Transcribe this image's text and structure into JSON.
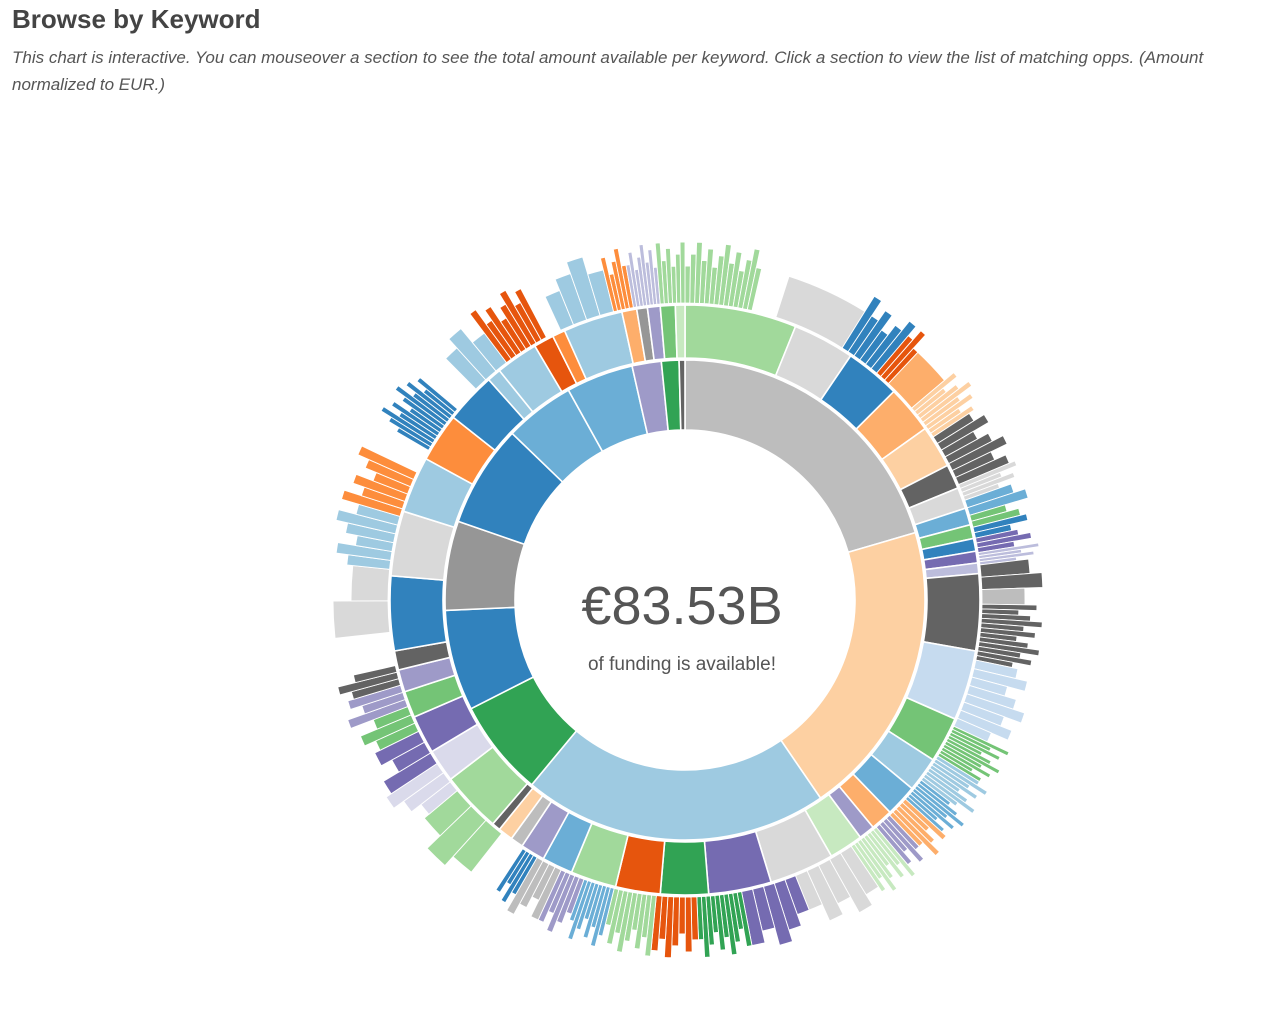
{
  "header": {
    "title": "Browse by Keyword",
    "description": "This chart is interactive. You can mouseover a section to see the total amount available per keyword. Click a section to view the list of matching opps. (Amount normalized to EUR.)"
  },
  "center": {
    "amount": "€83.53B",
    "caption": "of funding is available!"
  },
  "chart_data": {
    "type": "sunburst",
    "total_label": "€83.53B",
    "unit": "EUR",
    "start_angle_deg": 0,
    "palette": [
      "#3182bd",
      "#6baed6",
      "#9ecae1",
      "#c6dbef",
      "#e6550d",
      "#fd8d3c",
      "#fdae6b",
      "#fdd0a2",
      "#31a354",
      "#74c476",
      "#a1d99b",
      "#c7e9c0",
      "#756bb1",
      "#9e9ac8",
      "#bcbddc",
      "#dadaeb",
      "#636363",
      "#969696",
      "#bdbdbd",
      "#d9d9d9"
    ],
    "ring1": [
      {
        "value": 20.8,
        "color": "#bdbdbd"
      },
      {
        "value": 20.3,
        "color": "#fdd0a2"
      },
      {
        "value": 20.9,
        "color": "#9ecae1"
      },
      {
        "value": 6.6,
        "color": "#31a354"
      },
      {
        "value": 6.9,
        "color": "#3182bd"
      },
      {
        "value": 6.1,
        "color": "#969696"
      },
      {
        "value": 7.0,
        "color": "#3182bd"
      },
      {
        "value": 4.8,
        "color": "#6baed6"
      },
      {
        "value": 4.6,
        "color": "#6baed6"
      },
      {
        "value": 2.0,
        "color": "#9e9ac8"
      },
      {
        "value": 1.2,
        "color": "#31a354"
      },
      {
        "value": 0.4,
        "color": "#636363"
      }
    ],
    "ring2": [
      {
        "value": 10.5,
        "color": "#a1d99b"
      },
      {
        "value": 5.8,
        "color": "#d9d9d9"
      },
      {
        "value": 5.2,
        "color": "#3182bd"
      },
      {
        "value": 4.5,
        "color": "#fdae6b"
      },
      {
        "value": 4.0,
        "color": "#fdd0a2"
      },
      {
        "value": 2.3,
        "color": "#636363"
      },
      {
        "value": 2.0,
        "color": "#d9d9d9"
      },
      {
        "value": 1.6,
        "color": "#6baed6"
      },
      {
        "value": 1.3,
        "color": "#74c476"
      },
      {
        "value": 1.2,
        "color": "#3182bd"
      },
      {
        "value": 1.1,
        "color": "#756bb1"
      },
      {
        "value": 1.0,
        "color": "#bcbddc"
      },
      {
        "value": 7.2,
        "color": "#636363"
      },
      {
        "value": 6.6,
        "color": "#c6dbef"
      },
      {
        "value": 4.3,
        "color": "#74c476"
      },
      {
        "value": 3.3,
        "color": "#9ecae1"
      },
      {
        "value": 3.0,
        "color": "#6baed6"
      },
      {
        "value": 2.1,
        "color": "#fdae6b"
      },
      {
        "value": 1.5,
        "color": "#9e9ac8"
      },
      {
        "value": 3.2,
        "color": "#c7e9c0"
      },
      {
        "value": 6.1,
        "color": "#d9d9d9"
      },
      {
        "value": 5.9,
        "color": "#756bb1"
      },
      {
        "value": 4.5,
        "color": "#31a354"
      },
      {
        "value": 4.2,
        "color": "#e6550d"
      },
      {
        "value": 4.3,
        "color": "#a1d99b"
      },
      {
        "value": 2.9,
        "color": "#6baed6"
      },
      {
        "value": 2.3,
        "color": "#9e9ac8"
      },
      {
        "value": 1.2,
        "color": "#bdbdbd"
      },
      {
        "value": 1.4,
        "color": "#fdd0a2"
      },
      {
        "value": 0.8,
        "color": "#636363"
      },
      {
        "value": 5.7,
        "color": "#a1d99b"
      },
      {
        "value": 3.1,
        "color": "#dadaeb"
      },
      {
        "value": 3.6,
        "color": "#756bb1"
      },
      {
        "value": 2.5,
        "color": "#74c476"
      },
      {
        "value": 2.1,
        "color": "#9e9ac8"
      },
      {
        "value": 1.8,
        "color": "#636363"
      },
      {
        "value": 7.0,
        "color": "#3182bd"
      },
      {
        "value": 6.1,
        "color": "#d9d9d9"
      },
      {
        "value": 5.3,
        "color": "#9ecae1"
      },
      {
        "value": 4.6,
        "color": "#fd8d3c"
      },
      {
        "value": 4.8,
        "color": "#3182bd"
      },
      {
        "value": 1.3,
        "color": "#9ecae1"
      },
      {
        "value": 4.0,
        "color": "#9ecae1"
      },
      {
        "value": 1.9,
        "color": "#e6550d"
      },
      {
        "value": 1.2,
        "color": "#fd8d3c"
      },
      {
        "value": 5.6,
        "color": "#9ecae1"
      },
      {
        "value": 1.4,
        "color": "#fdae6b"
      },
      {
        "value": 1.0,
        "color": "#969696"
      },
      {
        "value": 1.2,
        "color": "#9e9ac8"
      },
      {
        "value": 1.4,
        "color": "#74c476"
      },
      {
        "value": 0.9,
        "color": "#c7e9c0"
      }
    ],
    "ring3": [
      {
        "value": 6.0,
        "color": "#a1d99b",
        "split": 14
      },
      {
        "value": 2.2,
        "color": "#ffffff",
        "gap": true
      },
      {
        "value": 6.5,
        "color": "#d9d9d9",
        "split": 1
      },
      {
        "value": 3.8,
        "color": "#3182bd",
        "split": 6
      },
      {
        "value": 1.4,
        "color": "#e6550d",
        "split": 3
      },
      {
        "value": 3.0,
        "color": "#fdae6b",
        "split": 1
      },
      {
        "value": 3.2,
        "color": "#fdd0a2",
        "split": 8
      },
      {
        "value": 4.8,
        "color": "#636363",
        "split": 7
      },
      {
        "value": 1.5,
        "color": "#d9d9d9",
        "split": 4
      },
      {
        "value": 1.4,
        "color": "#6baed6",
        "split": 2
      },
      {
        "value": 1.1,
        "color": "#74c476",
        "split": 2
      },
      {
        "value": 1.0,
        "color": "#3182bd",
        "split": 2
      },
      {
        "value": 1.3,
        "color": "#756bb1",
        "split": 3
      },
      {
        "value": 1.1,
        "color": "#bcbddc",
        "split": 4
      },
      {
        "value": 2.2,
        "color": "#636363",
        "split": 2
      },
      {
        "value": 1.3,
        "color": "#bdbdbd",
        "split": 1
      },
      {
        "value": 5.0,
        "color": "#636363",
        "split": 12
      },
      {
        "value": 6.2,
        "color": "#c6dbef",
        "split": 8
      },
      {
        "value": 3.0,
        "color": "#74c476",
        "split": 10
      },
      {
        "value": 2.6,
        "color": "#9ecae1",
        "split": 8
      },
      {
        "value": 2.2,
        "color": "#6baed6",
        "split": 7
      },
      {
        "value": 2.0,
        "color": "#fdae6b",
        "split": 5
      },
      {
        "value": 1.6,
        "color": "#9e9ac8",
        "split": 4
      },
      {
        "value": 2.8,
        "color": "#c7e9c0",
        "split": 8
      },
      {
        "value": 5.6,
        "color": "#d9d9d9",
        "split": 5
      },
      {
        "value": 5.0,
        "color": "#756bb1",
        "split": 5
      },
      {
        "value": 4.0,
        "color": "#31a354",
        "split": 10
      },
      {
        "value": 3.6,
        "color": "#e6550d",
        "split": 7
      },
      {
        "value": 3.8,
        "color": "#a1d99b",
        "split": 9
      },
      {
        "value": 2.8,
        "color": "#6baed6",
        "split": 8
      },
      {
        "value": 2.2,
        "color": "#9e9ac8",
        "split": 5
      },
      {
        "value": 2.4,
        "color": "#bdbdbd",
        "split": 4
      },
      {
        "value": 1.5,
        "color": "#3182bd",
        "split": 4
      },
      {
        "value": 2.3,
        "color": "#ffffff",
        "gap": true
      },
      {
        "value": 5.5,
        "color": "#a1d99b",
        "split": 3
      },
      {
        "value": 3.0,
        "color": "#dadaeb",
        "split": 3
      },
      {
        "value": 3.3,
        "color": "#756bb1",
        "split": 3
      },
      {
        "value": 2.4,
        "color": "#74c476",
        "split": 3
      },
      {
        "value": 2.0,
        "color": "#9e9ac8",
        "split": 3
      },
      {
        "value": 1.8,
        "color": "#636363",
        "split": 3
      },
      {
        "value": 3.0,
        "color": "#ffffff",
        "gap": true
      },
      {
        "value": 5.6,
        "color": "#d9d9d9",
        "split": 2
      },
      {
        "value": 4.8,
        "color": "#9ecae1",
        "split": 6
      },
      {
        "value": 4.2,
        "color": "#fd8d3c",
        "split": 6
      },
      {
        "value": 2.2,
        "color": "#ffffff",
        "gap": true
      },
      {
        "value": 4.5,
        "color": "#3182bd",
        "split": 12
      },
      {
        "value": 2.4,
        "color": "#ffffff",
        "gap": true
      },
      {
        "value": 3.6,
        "color": "#9ecae1",
        "split": 3
      },
      {
        "value": 4.2,
        "color": "#e6550d",
        "split": 8
      },
      {
        "value": 1.4,
        "color": "#ffffff",
        "gap": true
      },
      {
        "value": 5.0,
        "color": "#9ecae1",
        "split": 4
      },
      {
        "value": 1.8,
        "color": "#fd8d3c",
        "split": 5
      },
      {
        "value": 2.4,
        "color": "#bcbddc",
        "split": 8
      },
      {
        "value": 2.2,
        "color": "#a1d99b",
        "split": 6
      }
    ]
  }
}
